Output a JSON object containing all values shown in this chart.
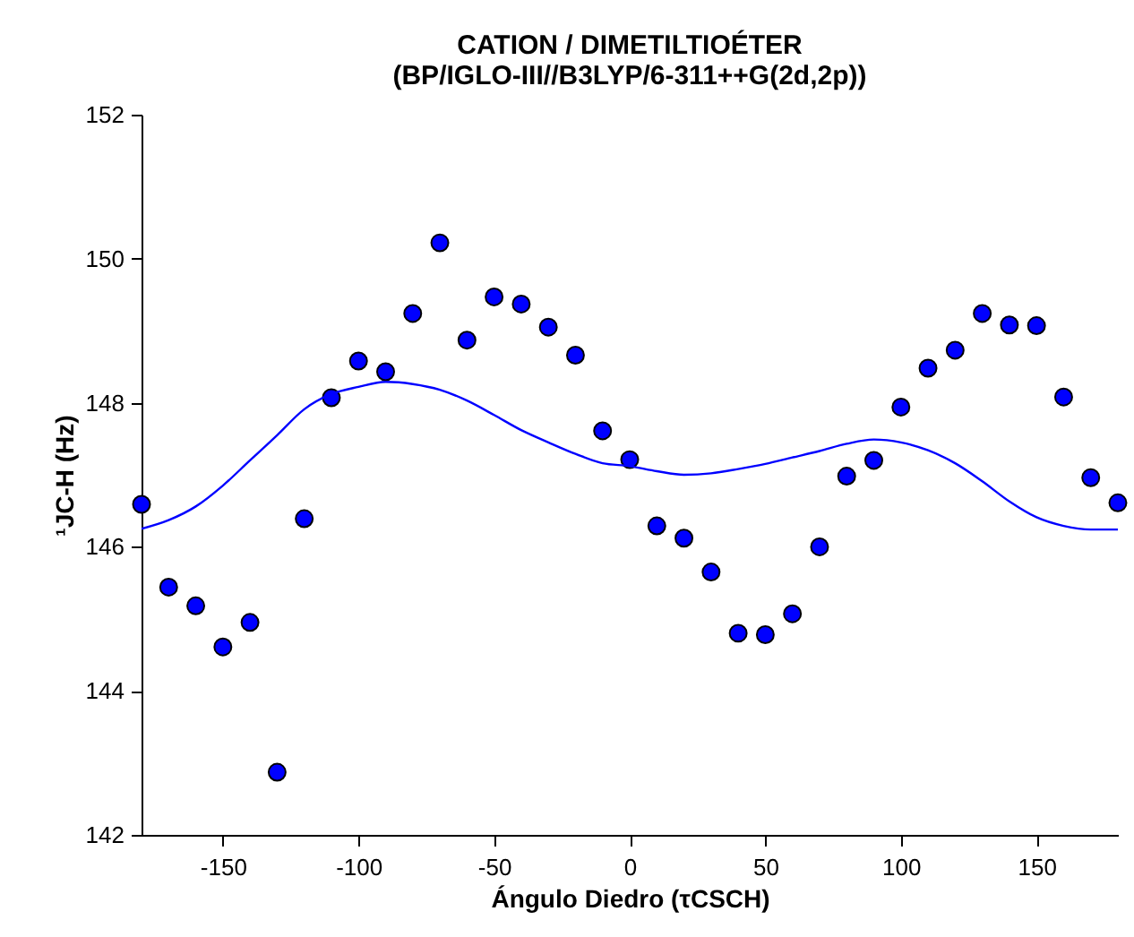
{
  "chart_data": {
    "type": "scatter",
    "title": [
      "CATION / DIMETILTIOÉTER",
      "(BP/IGLO-III//B3LYP/6-311++G(2d,2p))"
    ],
    "xlabel": "Ángulo Diedro (τCSCH)",
    "ylabel": "¹JC-H (Hz)",
    "xlim": [
      -180,
      180
    ],
    "xticks": [
      -150,
      -100,
      -50,
      0,
      50,
      100,
      150
    ],
    "ylim": [
      142,
      152
    ],
    "yticks": [
      142,
      144,
      146,
      148,
      150,
      152
    ],
    "grid": false,
    "series": [
      {
        "marker": "circle",
        "color": "#0000ff",
        "x": [
          -180,
          -170,
          -160,
          -150,
          -140,
          -130,
          -120,
          -110,
          -100,
          -90,
          -80,
          -70,
          -60,
          -50,
          -40,
          -30,
          -20,
          -10,
          0,
          10,
          20,
          30,
          40,
          50,
          60,
          70,
          80,
          90,
          100,
          110,
          120,
          130,
          140,
          150,
          160,
          170,
          180
        ],
        "values": [
          146.59,
          145.44,
          145.18,
          144.61,
          144.95,
          142.87,
          146.39,
          148.07,
          148.58,
          148.43,
          149.24,
          150.22,
          148.87,
          149.47,
          149.37,
          149.05,
          148.66,
          147.61,
          147.21,
          146.29,
          146.12,
          145.65,
          144.8,
          144.78,
          145.07,
          146.0,
          146.98,
          147.2,
          147.94,
          148.48,
          148.73,
          149.24,
          149.08,
          149.07,
          148.08,
          146.96,
          146.61
        ]
      },
      {
        "type": "line",
        "marker": "none",
        "line_style": "solid",
        "color": "#0000ff",
        "x": [
          -180,
          -170,
          -160,
          -150,
          -140,
          -130,
          -120,
          -110,
          -100,
          -90,
          -80,
          -70,
          -60,
          -50,
          -40,
          -30,
          -20,
          -10,
          0,
          10,
          20,
          30,
          40,
          50,
          60,
          70,
          80,
          90,
          100,
          110,
          120,
          130,
          140,
          150,
          160,
          170,
          180
        ],
        "values": [
          146.25,
          146.37,
          146.56,
          146.85,
          147.2,
          147.55,
          147.91,
          148.12,
          148.22,
          148.29,
          148.26,
          148.18,
          148.03,
          147.83,
          147.62,
          147.45,
          147.29,
          147.16,
          147.12,
          147.05,
          147.0,
          147.02,
          147.08,
          147.15,
          147.24,
          147.33,
          147.43,
          147.49,
          147.45,
          147.34,
          147.16,
          146.91,
          146.63,
          146.41,
          146.29,
          146.24,
          146.24
        ]
      }
    ]
  }
}
